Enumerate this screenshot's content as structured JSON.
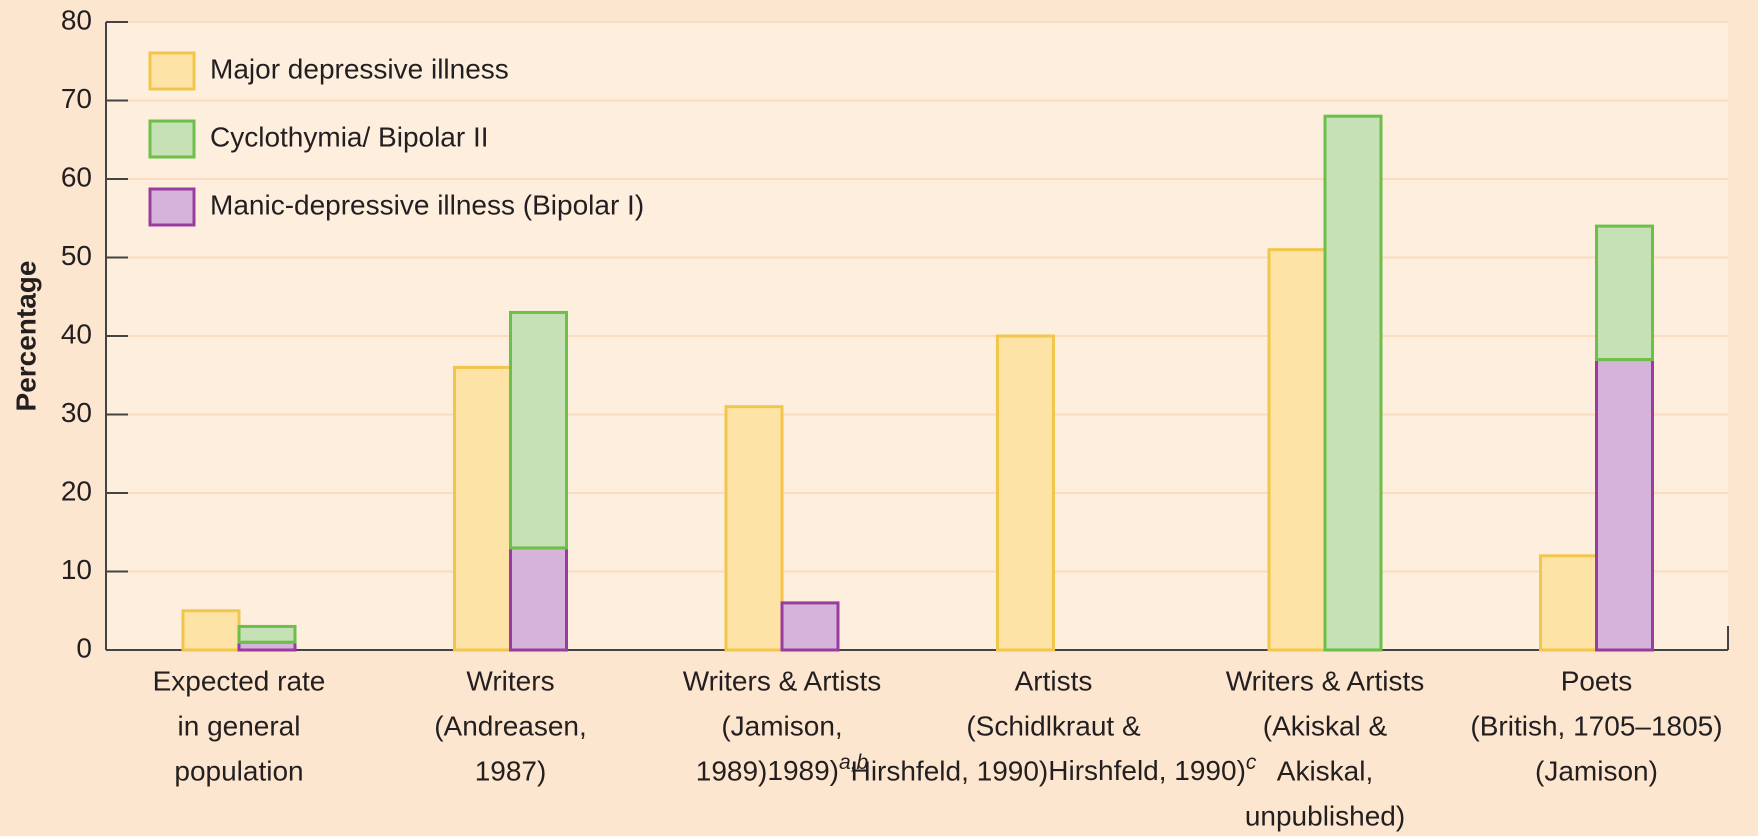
{
  "chart_data": {
    "type": "grouped-stacked-bar",
    "y_label": "Percentage",
    "categories": [
      [
        "Expected rate",
        "in general",
        "population"
      ],
      [
        "Writers",
        "(Andreasen,",
        "1987)"
      ],
      [
        "Writers & Artists",
        "(Jamison,",
        "1989)"
      ],
      [
        "Artists",
        "(Schidlkraut &",
        "Hirshfeld, 1990)"
      ],
      [
        "Writers & Artists",
        "(Akiskal &",
        "Akiskal,",
        "unpublished)"
      ],
      [
        "Poets",
        "(British, 1705–1805)",
        "(Jamison)"
      ]
    ],
    "category_notes": [
      null,
      null,
      "a,b",
      "c",
      null,
      null
    ],
    "series": [
      {
        "name": "Major depressive illness",
        "color": "#fde4a6",
        "edge": "#f2c64a",
        "stack": "left",
        "values": [
          5,
          36,
          31,
          40,
          51,
          12
        ]
      },
      {
        "name": "Cyclothymia/ Bipolar II",
        "color": "#c6e1b5",
        "edge": "#6cc04a",
        "stack": "right",
        "values": [
          2,
          30,
          null,
          null,
          68,
          17
        ]
      },
      {
        "name": "Manic-depressive illness (Bipolar I)",
        "color": "#d6b3da",
        "edge": "#9a3c9f",
        "stack": "right",
        "values": [
          1,
          13,
          6,
          null,
          null,
          37
        ]
      }
    ],
    "ylim": [
      0,
      80
    ],
    "yticks": [
      0,
      10,
      20,
      30,
      40,
      50,
      60,
      70,
      80
    ],
    "grid": true
  }
}
